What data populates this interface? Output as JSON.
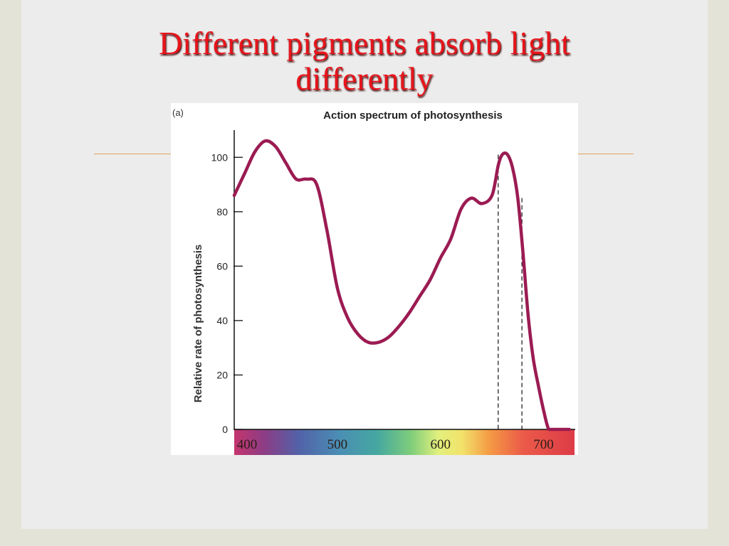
{
  "slide": {
    "title_line1": "Different pigments absorb light",
    "title_line2": "differently",
    "colors": {
      "title": "#e8141b",
      "rule": "#e4a25a",
      "curve": "#9b1b52"
    }
  },
  "chart_data": {
    "type": "line",
    "panel_label": "(a)",
    "title": "Action spectrum of photosynthesis",
    "ylabel": "Relative rate of photosynthesis",
    "xlabel": "",
    "ylim": [
      0,
      110
    ],
    "xlim": [
      400,
      730
    ],
    "y_ticks": [
      0,
      20,
      40,
      60,
      80,
      100
    ],
    "x_ticks": [
      400,
      500,
      600,
      700
    ],
    "x_axis_style": "visible-light color spectrum band",
    "grid": false,
    "series": [
      {
        "x": [
          400,
          410,
          420,
          430,
          440,
          450,
          460,
          470,
          480,
          490,
          500,
          510,
          520,
          530,
          540,
          550,
          560,
          570,
          580,
          590,
          600,
          610,
          620,
          630,
          640,
          650,
          656,
          660,
          665,
          670,
          675,
          680,
          685,
          690,
          695,
          700,
          705,
          710,
          715,
          720,
          725
        ],
        "y": [
          86,
          94,
          102,
          106,
          104,
          98,
          92,
          92,
          90,
          73,
          52,
          41,
          35,
          32,
          32,
          34,
          38,
          43,
          49,
          55,
          63,
          70,
          81,
          85,
          83,
          86,
          97,
          101,
          101,
          96,
          85,
          65,
          42,
          26,
          16,
          7,
          0,
          0,
          0,
          0,
          0
        ]
      }
    ],
    "reference_lines_x": [
      656,
      679
    ]
  }
}
